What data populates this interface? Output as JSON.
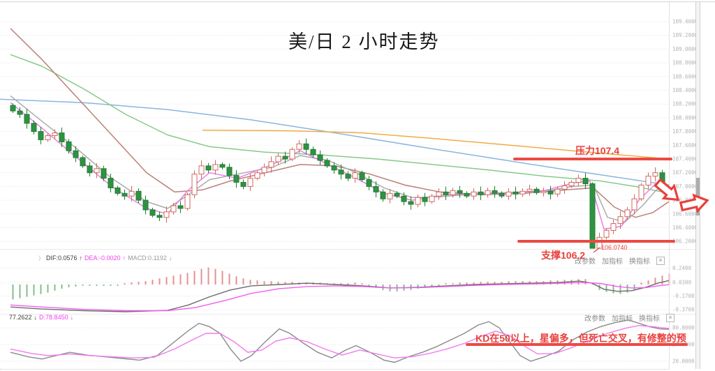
{
  "title": "美/日 2 小时走势",
  "annotations": {
    "resistance": "压力107.4",
    "support": "支撑106.2",
    "low_price": "106.0740",
    "kd_note": "KD在50以上，星偏多，但死亡交叉，有修整的预"
  },
  "indicator_labels": {
    "chevron": "〉",
    "dif": "DIF:0.0576",
    "dif_arrow": "↑",
    "dea": "DEA:-0.0020",
    "dea_arrow": "↑",
    "macd": "MACD:0.1192",
    "macd_arrow": "↓",
    "k": "77.2622",
    "k_arrow": "↓",
    "d": "D:78.8450",
    "d_arrow": "↓"
  },
  "toolbar": {
    "change_params": "改参数",
    "add_indicator": "加指标",
    "switch_indicator": "换指标",
    "close": "×"
  },
  "colors": {
    "grid": "#e3e3e3",
    "axis_text": "#b2b2b2",
    "candle_up": "#cf6a5c",
    "candle_down": "#1f7d33",
    "candle_down_fill": "#2f9241",
    "hist_up": "#e59090",
    "hist_down": "#85bd8b",
    "dif": "#6b6b6b",
    "dea": "#f05ef0",
    "k": "#8a8a8a",
    "d": "#f07af0",
    "annotation_red": "#e8413c"
  },
  "chart_data": {
    "type": "candlestick",
    "title": "美/日 2 小时走势",
    "symbol": "美/日",
    "timeframe": "2小时",
    "legend_position": "none",
    "grid": true,
    "price_axis": {
      "min": 106.2,
      "max": 109.4,
      "step": 0.2,
      "ticks": [
        "109.4000",
        "109.2000",
        "109.0000",
        "108.8000",
        "108.6000",
        "108.4000",
        "108.2000",
        "108.0000",
        "107.8000",
        "107.6000",
        "107.4000",
        "107.2000",
        "107.0000",
        "106.8000",
        "106.6000",
        "106.4000",
        "106.2000"
      ]
    },
    "levels": {
      "resistance": 107.4,
      "support": 106.2,
      "session_low": 106.074,
      "kd_mid": 50
    },
    "candles": {
      "first_open": 108.18,
      "closes": [
        108.1,
        108.05,
        107.92,
        107.8,
        107.68,
        107.74,
        107.78,
        107.65,
        107.52,
        107.42,
        107.3,
        107.2,
        107.26,
        107.12,
        106.98,
        106.9,
        106.86,
        106.93,
        106.8,
        106.66,
        106.58,
        106.55,
        106.63,
        106.72,
        106.68,
        106.88,
        107.18,
        107.3,
        107.24,
        107.32,
        107.28,
        107.16,
        107.06,
        107.0,
        107.12,
        107.2,
        107.28,
        107.36,
        107.44,
        107.4,
        107.54,
        107.62,
        107.54,
        107.46,
        107.38,
        107.3,
        107.24,
        107.18,
        107.12,
        107.2,
        107.1,
        107.0,
        106.92,
        106.82,
        106.9,
        106.86,
        106.78,
        106.74,
        106.84,
        106.78,
        106.86,
        106.92,
        106.88,
        106.94,
        106.9,
        106.86,
        106.92,
        106.88,
        106.94,
        106.9,
        106.86,
        106.92,
        106.89,
        106.93,
        106.96,
        106.91,
        106.93,
        106.89,
        106.96,
        107.01,
        107.06,
        107.12,
        107.04,
        106.1,
        106.26,
        106.36,
        106.46,
        106.56,
        106.66,
        106.82,
        107.02,
        107.15,
        107.2,
        106.98,
        106.88
      ],
      "overrides": {
        "83": {
          "low": 106.074,
          "high": 107.06
        }
      }
    },
    "moving_averages": [
      {
        "name": "blue",
        "color": "#8ab4e0",
        "points": [
          [
            0,
            108.27
          ],
          [
            120,
            108.22
          ],
          [
            240,
            108.12
          ],
          [
            360,
            107.97
          ],
          [
            480,
            107.78
          ],
          [
            600,
            107.58
          ],
          [
            700,
            107.42
          ],
          [
            800,
            107.26
          ],
          [
            880,
            107.14
          ],
          [
            958,
            107.02
          ]
        ]
      },
      {
        "name": "orange",
        "color": "#f2ab44",
        "points": [
          [
            290,
            107.82
          ],
          [
            420,
            107.81
          ],
          [
            520,
            107.78
          ],
          [
            620,
            107.7
          ],
          [
            720,
            107.61
          ],
          [
            820,
            107.52
          ],
          [
            958,
            107.4
          ]
        ]
      },
      {
        "name": "green",
        "color": "#86c98a",
        "points": [
          [
            15,
            108.92
          ],
          [
            60,
            108.75
          ],
          [
            120,
            108.42
          ],
          [
            180,
            108.05
          ],
          [
            240,
            107.75
          ],
          [
            300,
            107.58
          ],
          [
            380,
            107.5
          ],
          [
            460,
            107.46
          ],
          [
            540,
            107.4
          ],
          [
            620,
            107.32
          ],
          [
            700,
            107.24
          ],
          [
            780,
            107.15
          ],
          [
            860,
            107.08
          ],
          [
            910,
            107.0
          ],
          [
            958,
            106.9
          ]
        ]
      },
      {
        "name": "brown",
        "color": "#bc7f78",
        "points": [
          [
            15,
            109.3
          ],
          [
            60,
            108.85
          ],
          [
            110,
            108.3
          ],
          [
            160,
            107.75
          ],
          [
            210,
            107.2
          ],
          [
            250,
            106.92
          ],
          [
            290,
            106.95
          ],
          [
            330,
            107.08
          ],
          [
            380,
            107.2
          ],
          [
            430,
            107.32
          ],
          [
            480,
            107.3
          ],
          [
            530,
            107.18
          ],
          [
            580,
            107.02
          ],
          [
            630,
            106.92
          ],
          [
            690,
            106.88
          ],
          [
            750,
            106.9
          ],
          [
            810,
            106.95
          ],
          [
            850,
            106.98
          ],
          [
            880,
            106.7
          ],
          [
            910,
            106.55
          ],
          [
            935,
            106.62
          ],
          [
            958,
            106.78
          ]
        ]
      },
      {
        "name": "gray",
        "color": "#ababab",
        "points": [
          [
            15,
            108.32
          ],
          [
            60,
            107.95
          ],
          [
            110,
            107.55
          ],
          [
            160,
            107.12
          ],
          [
            210,
            106.78
          ],
          [
            240,
            106.68
          ],
          [
            270,
            106.88
          ],
          [
            300,
            107.1
          ],
          [
            340,
            107.18
          ],
          [
            390,
            107.28
          ],
          [
            430,
            107.45
          ],
          [
            470,
            107.38
          ],
          [
            510,
            107.2
          ],
          [
            550,
            106.98
          ],
          [
            590,
            106.84
          ],
          [
            630,
            106.85
          ],
          [
            680,
            106.89
          ],
          [
            730,
            106.9
          ],
          [
            780,
            106.93
          ],
          [
            820,
            107.0
          ],
          [
            850,
            107.02
          ],
          [
            870,
            106.55
          ],
          [
            895,
            106.48
          ],
          [
            920,
            106.72
          ],
          [
            940,
            106.95
          ],
          [
            958,
            107.0
          ]
        ]
      },
      {
        "name": "magenta",
        "color": "#ea7fe3",
        "points": [
          [
            15,
            108.22
          ],
          [
            60,
            107.85
          ],
          [
            110,
            107.42
          ],
          [
            160,
            107.0
          ],
          [
            210,
            106.68
          ],
          [
            240,
            106.6
          ],
          [
            270,
            106.95
          ],
          [
            300,
            107.2
          ],
          [
            340,
            107.12
          ],
          [
            390,
            107.32
          ],
          [
            430,
            107.52
          ],
          [
            470,
            107.32
          ],
          [
            510,
            107.12
          ],
          [
            550,
            106.9
          ],
          [
            590,
            106.8
          ],
          [
            630,
            106.87
          ],
          [
            680,
            106.9
          ],
          [
            730,
            106.91
          ],
          [
            780,
            106.94
          ],
          [
            820,
            107.05
          ],
          [
            845,
            107.08
          ],
          [
            865,
            106.38
          ],
          [
            890,
            106.42
          ],
          [
            915,
            106.8
          ],
          [
            940,
            107.05
          ],
          [
            958,
            106.92
          ]
        ]
      }
    ],
    "macd": {
      "dif_value": 0.0576,
      "dea_value": -0.002,
      "macd_value": 0.1192,
      "ticks": [
        "0.2400",
        "0.0300",
        "-0.1700",
        "-0.3700"
      ],
      "tick_values": [
        0.24,
        0.03,
        -0.17,
        -0.37
      ],
      "hist": [
        -0.22,
        -0.2,
        -0.18,
        -0.16,
        -0.14,
        -0.12,
        -0.09,
        -0.06,
        -0.04,
        -0.03,
        -0.02,
        -0.02,
        -0.02,
        -0.02,
        -0.02,
        -0.02,
        0.02,
        0.03,
        0.04,
        0.05,
        0.07,
        0.09,
        0.11,
        0.13,
        0.15,
        0.17,
        0.2,
        0.23,
        0.25,
        0.23,
        0.2,
        0.16,
        0.12,
        0.09,
        0.07,
        0.06,
        0.05,
        0.05,
        0.04,
        0.04,
        0.04,
        0.03,
        0.03,
        0.03,
        0.03,
        0.02,
        0.02,
        0.02,
        0.02,
        0.03,
        0.02,
        -0.02,
        -0.05,
        -0.08,
        -0.1,
        -0.1,
        -0.09,
        -0.08,
        -0.06,
        -0.05,
        -0.04,
        -0.02,
        0.02,
        0.02,
        0.03,
        0.03,
        0.03,
        0.04,
        0.04,
        0.04,
        0.04,
        0.05,
        0.05,
        0.05,
        0.05,
        0.05,
        0.05,
        0.06,
        0.06,
        0.07,
        0.07,
        0.08,
        0.08,
        0.03,
        -0.08,
        -0.11,
        -0.13,
        -0.14,
        -0.12,
        -0.09,
        0.03,
        0.06,
        0.1,
        0.13,
        0.16
      ],
      "dif": [
        [
          15,
          -0.33
        ],
        [
          60,
          -0.36
        ],
        [
          120,
          -0.385
        ],
        [
          180,
          -0.4
        ],
        [
          240,
          -0.38
        ],
        [
          270,
          -0.3
        ],
        [
          300,
          -0.18
        ],
        [
          330,
          -0.08
        ],
        [
          360,
          -0.02
        ],
        [
          400,
          0.0
        ],
        [
          440,
          0.02
        ],
        [
          480,
          0.0
        ],
        [
          520,
          -0.02
        ],
        [
          560,
          -0.05
        ],
        [
          600,
          -0.04
        ],
        [
          640,
          -0.02
        ],
        [
          680,
          0.0
        ],
        [
          720,
          0.01
        ],
        [
          760,
          0.02
        ],
        [
          800,
          0.03
        ],
        [
          830,
          0.05
        ],
        [
          848,
          0.02
        ],
        [
          865,
          -0.07
        ],
        [
          885,
          -0.1
        ],
        [
          905,
          -0.09
        ],
        [
          925,
          -0.04
        ],
        [
          942,
          0.02
        ],
        [
          958,
          0.058
        ]
      ],
      "dea": [
        [
          15,
          -0.3
        ],
        [
          60,
          -0.33
        ],
        [
          120,
          -0.365
        ],
        [
          180,
          -0.385
        ],
        [
          240,
          -0.385
        ],
        [
          280,
          -0.34
        ],
        [
          320,
          -0.24
        ],
        [
          360,
          -0.13
        ],
        [
          400,
          -0.06
        ],
        [
          440,
          -0.03
        ],
        [
          480,
          -0.02
        ],
        [
          520,
          -0.03
        ],
        [
          560,
          -0.05
        ],
        [
          600,
          -0.045
        ],
        [
          640,
          -0.03
        ],
        [
          680,
          -0.012
        ],
        [
          720,
          0.0
        ],
        [
          760,
          0.008
        ],
        [
          800,
          0.018
        ],
        [
          835,
          0.03
        ],
        [
          860,
          0.015
        ],
        [
          885,
          -0.03
        ],
        [
          905,
          -0.05
        ],
        [
          925,
          -0.045
        ],
        [
          942,
          -0.02
        ],
        [
          958,
          -0.002
        ]
      ]
    },
    "kd": {
      "k_value": 77.2622,
      "d_value": 78.845,
      "ticks": [
        "80.0000",
        "50.0000",
        "20.0000"
      ],
      "tick_values": [
        80,
        50,
        20
      ],
      "k": [
        [
          15,
          36
        ],
        [
          40,
          28
        ],
        [
          60,
          24
        ],
        [
          80,
          30
        ],
        [
          100,
          36
        ],
        [
          125,
          31
        ],
        [
          150,
          28
        ],
        [
          175,
          25
        ],
        [
          200,
          22
        ],
        [
          225,
          30
        ],
        [
          250,
          55
        ],
        [
          270,
          75
        ],
        [
          285,
          88
        ],
        [
          300,
          82
        ],
        [
          315,
          70
        ],
        [
          330,
          42
        ],
        [
          345,
          20
        ],
        [
          360,
          30
        ],
        [
          380,
          55
        ],
        [
          400,
          78
        ],
        [
          415,
          70
        ],
        [
          435,
          52
        ],
        [
          455,
          36
        ],
        [
          475,
          26
        ],
        [
          495,
          40
        ],
        [
          510,
          48
        ],
        [
          530,
          36
        ],
        [
          550,
          22
        ],
        [
          565,
          18
        ],
        [
          585,
          28
        ],
        [
          605,
          36
        ],
        [
          625,
          46
        ],
        [
          645,
          58
        ],
        [
          665,
          70
        ],
        [
          685,
          85
        ],
        [
          700,
          91
        ],
        [
          715,
          80
        ],
        [
          730,
          55
        ],
        [
          745,
          30
        ],
        [
          760,
          20
        ],
        [
          780,
          28
        ],
        [
          800,
          38
        ],
        [
          820,
          58
        ],
        [
          840,
          72
        ],
        [
          860,
          82
        ],
        [
          880,
          89
        ],
        [
          900,
          94
        ],
        [
          915,
          88
        ],
        [
          930,
          82
        ],
        [
          945,
          78
        ],
        [
          958,
          77.3
        ]
      ],
      "d": [
        [
          15,
          42
        ],
        [
          45,
          34
        ],
        [
          70,
          30
        ],
        [
          100,
          33
        ],
        [
          130,
          30
        ],
        [
          160,
          28
        ],
        [
          190,
          26
        ],
        [
          220,
          27
        ],
        [
          250,
          42
        ],
        [
          275,
          58
        ],
        [
          295,
          70
        ],
        [
          315,
          70
        ],
        [
          335,
          55
        ],
        [
          355,
          36
        ],
        [
          375,
          40
        ],
        [
          395,
          56
        ],
        [
          415,
          62
        ],
        [
          440,
          55
        ],
        [
          465,
          42
        ],
        [
          490,
          31
        ],
        [
          515,
          40
        ],
        [
          540,
          33
        ],
        [
          565,
          26
        ],
        [
          590,
          28
        ],
        [
          615,
          34
        ],
        [
          640,
          42
        ],
        [
          665,
          52
        ],
        [
          690,
          65
        ],
        [
          710,
          74
        ],
        [
          730,
          66
        ],
        [
          750,
          48
        ],
        [
          770,
          33
        ],
        [
          795,
          34
        ],
        [
          820,
          45
        ],
        [
          845,
          58
        ],
        [
          870,
          70
        ],
        [
          895,
          79
        ],
        [
          915,
          84
        ],
        [
          935,
          82
        ],
        [
          948,
          80
        ],
        [
          958,
          78.8
        ]
      ]
    }
  }
}
